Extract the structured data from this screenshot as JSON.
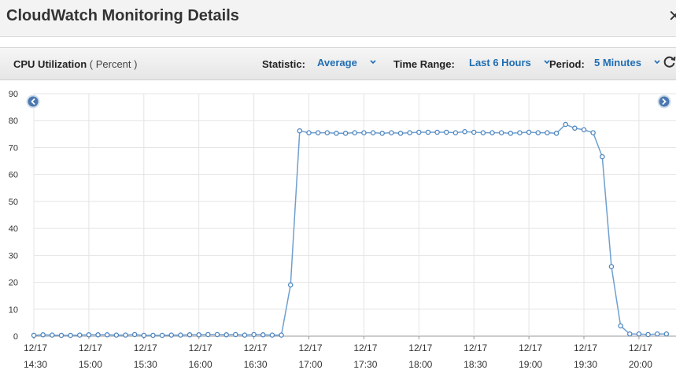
{
  "window": {
    "title": "CloudWatch Monitoring Details"
  },
  "toolbar": {
    "metric_name": "CPU Utilization",
    "metric_unit": " ( Percent )",
    "statistic_label": "Statistic:",
    "statistic_value": "Average",
    "time_range_label": "Time Range:",
    "time_range_value": "Last 6 Hours",
    "period_label": "Period:",
    "period_value": "5 Minutes"
  },
  "icons": {
    "close": "close-icon",
    "refresh": "refresh-icon",
    "prev": "chevron-left-icon",
    "next": "chevron-right-icon"
  },
  "colors": {
    "accent": "#1f6db3",
    "series": "#6f9fcf"
  },
  "chart_data": {
    "type": "line",
    "title": "",
    "xlabel": "",
    "ylabel": "",
    "ylim": [
      0,
      90
    ],
    "yticks": [
      0,
      10,
      20,
      30,
      40,
      50,
      60,
      70,
      80,
      90
    ],
    "xlim": [
      1,
      66
    ],
    "grid": true,
    "xticks": [
      {
        "x": 1,
        "date": "12/17",
        "time": "14:30"
      },
      {
        "x": 7,
        "date": "12/17",
        "time": "15:00"
      },
      {
        "x": 13,
        "date": "12/17",
        "time": "15:30"
      },
      {
        "x": 19,
        "date": "12/17",
        "time": "16:00"
      },
      {
        "x": 25,
        "date": "12/17",
        "time": "16:30"
      },
      {
        "x": 31,
        "date": "12/17",
        "time": "17:00"
      },
      {
        "x": 37,
        "date": "12/17",
        "time": "17:30"
      },
      {
        "x": 43,
        "date": "12/17",
        "time": "18:00"
      },
      {
        "x": 49,
        "date": "12/17",
        "time": "18:30"
      },
      {
        "x": 55,
        "date": "12/17",
        "time": "19:00"
      },
      {
        "x": 61,
        "date": "12/17",
        "time": "19:30"
      },
      {
        "x": 67,
        "date": "12/17",
        "time": "20:00"
      }
    ],
    "series": [
      {
        "values": [
          0.3,
          0.5,
          0.4,
          0.3,
          0.3,
          0.4,
          0.5,
          0.5,
          0.5,
          0.4,
          0.4,
          0.6,
          0.3,
          0.3,
          0.3,
          0.4,
          0.4,
          0.5,
          0.5,
          0.6,
          0.6,
          0.5,
          0.6,
          0.4,
          0.6,
          0.5,
          0.4,
          0.4,
          19,
          76.2,
          75.5,
          75.5,
          75.5,
          75.3,
          75.3,
          75.5,
          75.5,
          75.5,
          75.3,
          75.5,
          75.3,
          75.5,
          75.7,
          75.7,
          75.7,
          75.7,
          75.5,
          75.9,
          75.7,
          75.5,
          75.5,
          75.5,
          75.3,
          75.5,
          75.7,
          75.5,
          75.5,
          75.3,
          78.6,
          77.2,
          76.6,
          75.5,
          66.6,
          25.8,
          3.8,
          0.8,
          0.8,
          0.6,
          0.8,
          0.8
        ]
      }
    ]
  }
}
